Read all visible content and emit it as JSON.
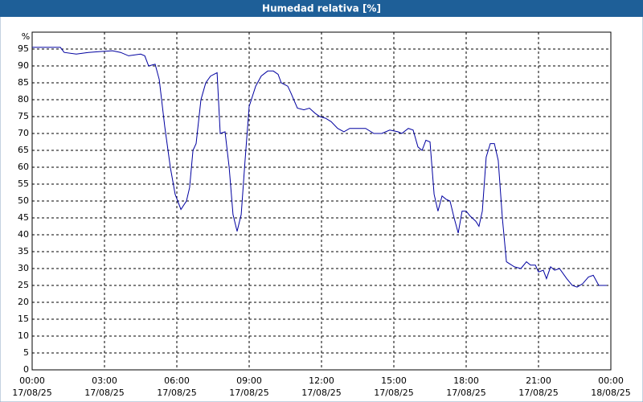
{
  "chart_data": {
    "type": "line",
    "title": "Humedad relativa [%]",
    "ylabel": "%",
    "xlim": [
      0,
      24
    ],
    "ylim": [
      0,
      100
    ],
    "grid": true,
    "xticks": [
      {
        "value": 0,
        "label": "00:00\n17/08/25"
      },
      {
        "value": 3,
        "label": "03:00\n17/08/25"
      },
      {
        "value": 6,
        "label": "06:00\n17/08/25"
      },
      {
        "value": 9,
        "label": "09:00\n17/08/25"
      },
      {
        "value": 12,
        "label": "12:00\n17/08/25"
      },
      {
        "value": 15,
        "label": "15:00\n17/08/25"
      },
      {
        "value": 18,
        "label": "18:00\n17/08/25"
      },
      {
        "value": 21,
        "label": "21:00\n17/08/25"
      },
      {
        "value": 24,
        "label": "00:00\n18/08/25"
      }
    ],
    "yticks": [
      0,
      5,
      10,
      15,
      20,
      25,
      30,
      35,
      40,
      45,
      50,
      55,
      60,
      65,
      70,
      75,
      80,
      85,
      90,
      95
    ],
    "series": [
      {
        "name": "Humedad relativa",
        "color": "#0000a0",
        "x": [
          0,
          1.17,
          1.33,
          1.83,
          2.33,
          3.33,
          3.67,
          4.0,
          4.5,
          4.67,
          4.83,
          5.1,
          5.27,
          5.5,
          5.73,
          5.93,
          6.17,
          6.4,
          6.53,
          6.67,
          6.8,
          7.0,
          7.2,
          7.4,
          7.67,
          7.8,
          8.0,
          8.17,
          8.33,
          8.5,
          8.67,
          8.83,
          9.0,
          9.27,
          9.5,
          9.77,
          10.0,
          10.2,
          10.33,
          10.6,
          10.73,
          11.0,
          11.27,
          11.5,
          11.73,
          11.93,
          12.17,
          12.4,
          12.67,
          12.93,
          13.17,
          13.5,
          13.83,
          14.17,
          14.5,
          14.83,
          15.17,
          15.33,
          15.6,
          15.8,
          16.0,
          16.17,
          16.33,
          16.5,
          16.67,
          16.83,
          17.0,
          17.17,
          17.33,
          17.5,
          17.67,
          17.83,
          18.0,
          18.17,
          18.4,
          18.53,
          18.67,
          18.83,
          19.0,
          19.17,
          19.33,
          19.5,
          19.67,
          20.0,
          20.27,
          20.5,
          20.67,
          20.87,
          21.0,
          21.2,
          21.33,
          21.5,
          21.67,
          21.87,
          22.17,
          22.4,
          22.6,
          22.83,
          23.07,
          23.27,
          23.5,
          23.67,
          23.83
        ],
        "values": [
          95.5,
          95.5,
          94,
          93.5,
          94,
          94.5,
          94,
          93,
          93.5,
          93,
          90,
          90.5,
          86,
          72,
          60,
          52,
          47.5,
          50,
          54,
          65,
          67,
          80,
          85,
          87,
          88,
          70,
          70.5,
          60,
          46,
          41,
          46,
          62,
          78,
          84,
          87,
          88.5,
          88.5,
          87.5,
          85,
          84,
          82,
          77.5,
          77,
          77.5,
          76,
          75,
          74.5,
          73.5,
          71.5,
          70.5,
          71.5,
          71.5,
          71.5,
          70,
          70,
          71,
          70.5,
          70,
          71.5,
          71,
          66,
          65,
          68,
          67.5,
          52,
          47,
          51.5,
          50.5,
          50,
          45,
          40.5,
          47,
          47,
          45.5,
          44,
          42.5,
          47,
          63,
          67,
          67,
          62,
          45,
          32,
          30.5,
          30,
          32,
          31,
          31,
          29,
          29.5,
          27,
          30.5,
          29.5,
          30,
          27,
          25,
          24.5,
          25.5,
          27.5,
          28,
          25,
          25,
          25
        ]
      }
    ]
  }
}
